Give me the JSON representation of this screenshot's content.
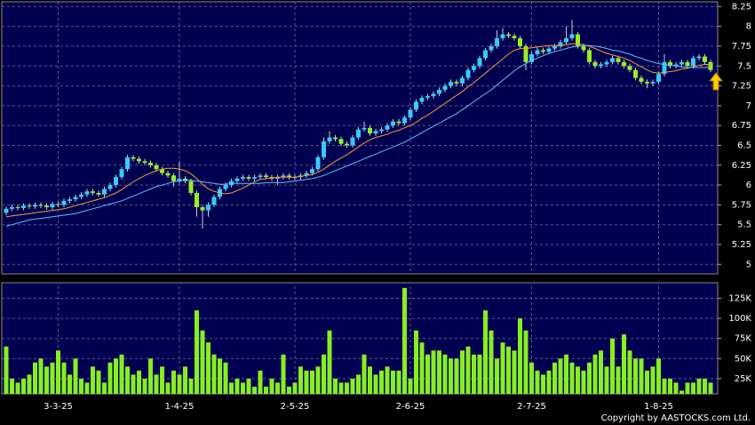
{
  "chart_data": [
    {
      "type": "candlestick",
      "ylim": [
        4.88,
        8.31
      ],
      "yticks": [
        5,
        5.25,
        5.5,
        5.75,
        6,
        6.25,
        6.5,
        6.75,
        7,
        7.25,
        7.5,
        7.75,
        8,
        8.25
      ],
      "grid": true,
      "up_color": "#33ccff",
      "down_color": "#99ee22",
      "ohlc": [
        [
          5.65,
          5.73,
          5.62,
          5.7
        ],
        [
          5.7,
          5.75,
          5.67,
          5.72
        ],
        [
          5.72,
          5.75,
          5.68,
          5.71
        ],
        [
          5.71,
          5.77,
          5.68,
          5.74
        ],
        [
          5.74,
          5.77,
          5.7,
          5.73
        ],
        [
          5.73,
          5.78,
          5.7,
          5.75
        ],
        [
          5.75,
          5.78,
          5.71,
          5.74
        ],
        [
          5.74,
          5.77,
          5.69,
          5.72
        ],
        [
          5.72,
          5.79,
          5.69,
          5.76
        ],
        [
          5.76,
          5.79,
          5.72,
          5.75
        ],
        [
          5.75,
          5.83,
          5.72,
          5.8
        ],
        [
          5.8,
          5.85,
          5.77,
          5.82
        ],
        [
          5.82,
          5.88,
          5.79,
          5.85
        ],
        [
          5.85,
          5.91,
          5.82,
          5.88
        ],
        [
          5.88,
          5.95,
          5.85,
          5.92
        ],
        [
          5.92,
          5.95,
          5.87,
          5.9
        ],
        [
          5.9,
          5.93,
          5.85,
          5.88
        ],
        [
          5.88,
          5.98,
          5.85,
          5.95
        ],
        [
          5.95,
          6.03,
          5.92,
          6.0
        ],
        [
          6.0,
          6.13,
          5.97,
          6.1
        ],
        [
          6.1,
          6.23,
          6.07,
          6.2
        ],
        [
          6.2,
          6.38,
          6.17,
          6.35
        ],
        [
          6.35,
          6.38,
          6.3,
          6.33
        ],
        [
          6.33,
          6.36,
          6.27,
          6.3
        ],
        [
          6.3,
          6.33,
          6.25,
          6.28
        ],
        [
          6.28,
          6.31,
          6.22,
          6.25
        ],
        [
          6.25,
          6.28,
          6.17,
          6.2
        ],
        [
          6.2,
          6.23,
          6.12,
          6.15
        ],
        [
          6.15,
          6.18,
          6.09,
          6.12
        ],
        [
          6.12,
          6.15,
          5.98,
          6.05
        ],
        [
          6.05,
          6.3,
          6.02,
          6.08
        ],
        [
          6.08,
          6.11,
          6.02,
          6.05
        ],
        [
          6.05,
          6.08,
          5.87,
          5.9
        ],
        [
          5.9,
          5.93,
          5.6,
          5.72
        ],
        [
          5.72,
          5.75,
          5.45,
          5.68
        ],
        [
          5.68,
          5.78,
          5.6,
          5.75
        ],
        [
          5.75,
          5.88,
          5.72,
          5.85
        ],
        [
          5.85,
          5.98,
          5.82,
          5.95
        ],
        [
          5.95,
          6.03,
          5.92,
          6.0
        ],
        [
          6.0,
          6.08,
          5.97,
          6.05
        ],
        [
          6.05,
          6.11,
          6.02,
          6.08
        ],
        [
          6.08,
          6.13,
          6.05,
          6.1
        ],
        [
          6.1,
          6.13,
          6.05,
          6.08
        ],
        [
          6.08,
          6.13,
          6.05,
          6.1
        ],
        [
          6.1,
          6.15,
          6.07,
          6.12
        ],
        [
          6.12,
          6.15,
          6.07,
          6.1
        ],
        [
          6.1,
          6.13,
          6.05,
          6.08
        ],
        [
          6.08,
          6.13,
          6.0,
          6.1
        ],
        [
          6.1,
          6.15,
          6.07,
          6.12
        ],
        [
          6.12,
          6.15,
          6.07,
          6.1
        ],
        [
          6.1,
          6.13,
          6.07,
          6.1
        ],
        [
          6.1,
          6.15,
          6.07,
          6.12
        ],
        [
          6.12,
          6.18,
          6.09,
          6.15
        ],
        [
          6.15,
          6.23,
          6.12,
          6.2
        ],
        [
          6.2,
          6.38,
          6.17,
          6.35
        ],
        [
          6.35,
          6.6,
          6.32,
          6.55
        ],
        [
          6.55,
          6.68,
          6.52,
          6.6
        ],
        [
          6.6,
          6.63,
          6.55,
          6.58
        ],
        [
          6.58,
          6.61,
          6.49,
          6.52
        ],
        [
          6.52,
          6.55,
          6.47,
          6.5
        ],
        [
          6.5,
          6.63,
          6.47,
          6.6
        ],
        [
          6.6,
          6.73,
          6.57,
          6.7
        ],
        [
          6.7,
          6.8,
          6.67,
          6.72
        ],
        [
          6.72,
          6.75,
          6.62,
          6.65
        ],
        [
          6.65,
          6.71,
          6.62,
          6.68
        ],
        [
          6.68,
          6.73,
          6.65,
          6.7
        ],
        [
          6.7,
          6.78,
          6.67,
          6.75
        ],
        [
          6.75,
          6.83,
          6.72,
          6.8
        ],
        [
          6.8,
          6.83,
          6.75,
          6.78
        ],
        [
          6.78,
          6.88,
          6.75,
          6.85
        ],
        [
          6.85,
          6.98,
          6.82,
          6.95
        ],
        [
          6.95,
          7.08,
          6.92,
          7.05
        ],
        [
          7.05,
          7.13,
          7.02,
          7.1
        ],
        [
          7.1,
          7.15,
          7.07,
          7.12
        ],
        [
          7.12,
          7.18,
          7.09,
          7.15
        ],
        [
          7.15,
          7.23,
          7.12,
          7.2
        ],
        [
          7.2,
          7.28,
          7.17,
          7.25
        ],
        [
          7.25,
          7.33,
          7.22,
          7.3
        ],
        [
          7.3,
          7.33,
          7.25,
          7.28
        ],
        [
          7.28,
          7.38,
          7.25,
          7.35
        ],
        [
          7.35,
          7.48,
          7.32,
          7.45
        ],
        [
          7.45,
          7.53,
          7.42,
          7.5
        ],
        [
          7.5,
          7.63,
          7.47,
          7.6
        ],
        [
          7.6,
          7.73,
          7.57,
          7.7
        ],
        [
          7.7,
          7.78,
          7.67,
          7.75
        ],
        [
          7.75,
          7.95,
          7.72,
          7.85
        ],
        [
          7.85,
          7.98,
          7.82,
          7.9
        ],
        [
          7.9,
          7.93,
          7.85,
          7.88
        ],
        [
          7.88,
          7.91,
          7.82,
          7.85
        ],
        [
          7.85,
          7.88,
          7.72,
          7.75
        ],
        [
          7.75,
          7.78,
          7.45,
          7.55
        ],
        [
          7.55,
          7.68,
          7.52,
          7.65
        ],
        [
          7.65,
          7.73,
          7.62,
          7.7
        ],
        [
          7.7,
          7.73,
          7.65,
          7.68
        ],
        [
          7.68,
          7.75,
          7.65,
          7.72
        ],
        [
          7.72,
          7.78,
          7.69,
          7.75
        ],
        [
          7.75,
          7.83,
          7.72,
          7.8
        ],
        [
          7.8,
          8.0,
          7.77,
          7.85
        ],
        [
          7.85,
          8.08,
          7.82,
          7.9
        ],
        [
          7.9,
          7.93,
          7.72,
          7.75
        ],
        [
          7.75,
          7.78,
          7.67,
          7.7
        ],
        [
          7.7,
          7.73,
          7.52,
          7.55
        ],
        [
          7.55,
          7.58,
          7.47,
          7.5
        ],
        [
          7.5,
          7.55,
          7.47,
          7.52
        ],
        [
          7.52,
          7.58,
          7.49,
          7.55
        ],
        [
          7.55,
          7.63,
          7.52,
          7.6
        ],
        [
          7.6,
          7.63,
          7.52,
          7.55
        ],
        [
          7.55,
          7.58,
          7.47,
          7.5
        ],
        [
          7.5,
          7.53,
          7.42,
          7.45
        ],
        [
          7.45,
          7.48,
          7.32,
          7.35
        ],
        [
          7.35,
          7.38,
          7.27,
          7.3
        ],
        [
          7.3,
          7.33,
          7.22,
          7.28
        ],
        [
          7.28,
          7.33,
          7.25,
          7.3
        ],
        [
          7.3,
          7.43,
          7.27,
          7.4
        ],
        [
          7.4,
          7.65,
          7.37,
          7.55
        ],
        [
          7.55,
          7.58,
          7.47,
          7.5
        ],
        [
          7.5,
          7.55,
          7.47,
          7.52
        ],
        [
          7.52,
          7.58,
          7.49,
          7.55
        ],
        [
          7.55,
          7.58,
          7.47,
          7.5
        ],
        [
          7.5,
          7.63,
          7.47,
          7.6
        ],
        [
          7.6,
          7.65,
          7.57,
          7.62
        ],
        [
          7.62,
          7.65,
          7.52,
          7.55
        ],
        [
          7.55,
          7.58,
          7.42,
          7.45
        ]
      ],
      "lines": [
        {
          "color": "#ff9933",
          "values": [
            5.6,
            5.61,
            5.62,
            5.63,
            5.64,
            5.65,
            5.66,
            5.67,
            5.68,
            5.69,
            5.7,
            5.72,
            5.74,
            5.76,
            5.78,
            5.8,
            5.82,
            5.84,
            5.87,
            5.9,
            5.94,
            5.99,
            6.04,
            6.08,
            6.12,
            6.15,
            6.18,
            6.2,
            6.21,
            6.21,
            6.2,
            6.18,
            6.14,
            6.08,
            6.01,
            5.95,
            5.92,
            5.9,
            5.89,
            5.9,
            5.93,
            5.96,
            6.0,
            6.04,
            6.07,
            6.08,
            6.09,
            6.1,
            6.1,
            6.1,
            6.1,
            6.11,
            6.12,
            6.13,
            6.16,
            6.2,
            6.25,
            6.3,
            6.34,
            6.38,
            6.43,
            6.48,
            6.53,
            6.57,
            6.6,
            6.62,
            6.64,
            6.67,
            6.69,
            6.72,
            6.75,
            6.79,
            6.84,
            6.88,
            6.93,
            6.98,
            7.03,
            7.08,
            7.13,
            7.18,
            7.24,
            7.29,
            7.35,
            7.41,
            7.47,
            7.53,
            7.59,
            7.65,
            7.7,
            7.72,
            7.72,
            7.73,
            7.74,
            7.75,
            7.76,
            7.76,
            7.76,
            7.77,
            7.78,
            7.78,
            7.77,
            7.75,
            7.72,
            7.69,
            7.66,
            7.64,
            7.62,
            7.6,
            7.57,
            7.53,
            7.49,
            7.45,
            7.42,
            7.41,
            7.42,
            7.43,
            7.44,
            7.46,
            7.47,
            7.49,
            7.51,
            7.52,
            7.52
          ]
        },
        {
          "color": "#66bbff",
          "values": [
            5.48,
            5.5,
            5.52,
            5.54,
            5.56,
            5.57,
            5.58,
            5.59,
            5.6,
            5.61,
            5.62,
            5.63,
            5.64,
            5.66,
            5.68,
            5.7,
            5.72,
            5.74,
            5.76,
            5.78,
            5.8,
            5.83,
            5.86,
            5.89,
            5.92,
            5.95,
            5.98,
            6.0,
            6.02,
            6.04,
            6.05,
            6.06,
            6.06,
            6.05,
            6.04,
            6.03,
            6.02,
            6.01,
            6.01,
            6.02,
            6.02,
            6.02,
            6.02,
            6.02,
            6.02,
            6.03,
            6.03,
            6.03,
            6.03,
            6.04,
            6.05,
            6.06,
            6.07,
            6.08,
            6.1,
            6.12,
            6.15,
            6.18,
            6.21,
            6.24,
            6.27,
            6.3,
            6.33,
            6.36,
            6.39,
            6.42,
            6.45,
            6.48,
            6.51,
            6.54,
            6.58,
            6.62,
            6.66,
            6.7,
            6.74,
            6.78,
            6.82,
            6.86,
            6.9,
            6.95,
            7.0,
            7.05,
            7.1,
            7.15,
            7.2,
            7.26,
            7.32,
            7.38,
            7.44,
            7.49,
            7.53,
            7.57,
            7.6,
            7.63,
            7.66,
            7.68,
            7.7,
            7.72,
            7.74,
            7.75,
            7.76,
            7.76,
            7.75,
            7.74,
            7.72,
            7.7,
            7.69,
            7.67,
            7.65,
            7.62,
            7.6,
            7.57,
            7.55,
            7.53,
            7.52,
            7.51,
            7.5,
            7.49,
            7.48,
            7.48,
            7.48,
            7.48,
            7.48
          ]
        }
      ]
    },
    {
      "type": "bar",
      "ylim": [
        6000,
        140000
      ],
      "color": "#88ee22",
      "grid": true,
      "yticks": [
        {
          "value": 25000,
          "label": "25K"
        },
        {
          "value": 50000,
          "label": "50K"
        },
        {
          "value": 75000,
          "label": "75K"
        },
        {
          "value": 100000,
          "label": "100K"
        },
        {
          "value": 125000,
          "label": "125K"
        }
      ],
      "categories": [
        null,
        null,
        null,
        null,
        null,
        null,
        null,
        null,
        null,
        "3-3-25",
        null,
        null,
        null,
        null,
        null,
        null,
        null,
        null,
        null,
        null,
        null,
        null,
        null,
        null,
        null,
        null,
        null,
        null,
        null,
        null,
        "1-4-25",
        null,
        null,
        null,
        null,
        null,
        null,
        null,
        null,
        null,
        null,
        null,
        null,
        null,
        null,
        null,
        null,
        null,
        null,
        null,
        "2-5-25",
        null,
        null,
        null,
        null,
        null,
        null,
        null,
        null,
        null,
        null,
        null,
        null,
        null,
        null,
        null,
        null,
        null,
        null,
        null,
        "2-6-25",
        null,
        null,
        null,
        null,
        null,
        null,
        null,
        null,
        null,
        null,
        null,
        null,
        null,
        null,
        null,
        null,
        null,
        null,
        null,
        null,
        "2-7-25",
        null,
        null,
        null,
        null,
        null,
        null,
        null,
        null,
        null,
        null,
        null,
        null,
        null,
        null,
        null,
        null,
        null,
        null,
        null,
        null,
        null,
        "1-8-25",
        null,
        null,
        null,
        null,
        null,
        null,
        null,
        null,
        null
      ],
      "values": [
        65000,
        25000,
        20000,
        25000,
        30000,
        45000,
        50000,
        40000,
        45000,
        60000,
        45000,
        30000,
        50000,
        25000,
        20000,
        40000,
        35000,
        20000,
        45000,
        50000,
        55000,
        40000,
        30000,
        35000,
        25000,
        50000,
        30000,
        40000,
        20000,
        35000,
        30000,
        40000,
        25000,
        110000,
        85000,
        70000,
        55000,
        50000,
        45000,
        20000,
        25000,
        20000,
        25000,
        15000,
        35000,
        15000,
        25000,
        20000,
        55000,
        15000,
        20000,
        40000,
        35000,
        35000,
        40000,
        55000,
        85000,
        25000,
        20000,
        20000,
        25000,
        30000,
        55000,
        40000,
        30000,
        35000,
        40000,
        35000,
        35000,
        138000,
        25000,
        85000,
        70000,
        55000,
        60000,
        60000,
        55000,
        50000,
        50000,
        60000,
        65000,
        55000,
        55000,
        110000,
        85000,
        50000,
        70000,
        65000,
        60000,
        100000,
        85000,
        45000,
        35000,
        30000,
        35000,
        45000,
        50000,
        55000,
        45000,
        40000,
        35000,
        45000,
        55000,
        60000,
        40000,
        75000,
        40000,
        80000,
        60000,
        50000,
        50000,
        35000,
        40000,
        50000,
        25000,
        25000,
        20000,
        10000,
        20000,
        20000,
        25000,
        25000,
        20000
      ]
    }
  ],
  "copyright": "Copyright by AASTOCKS.com Ltd."
}
